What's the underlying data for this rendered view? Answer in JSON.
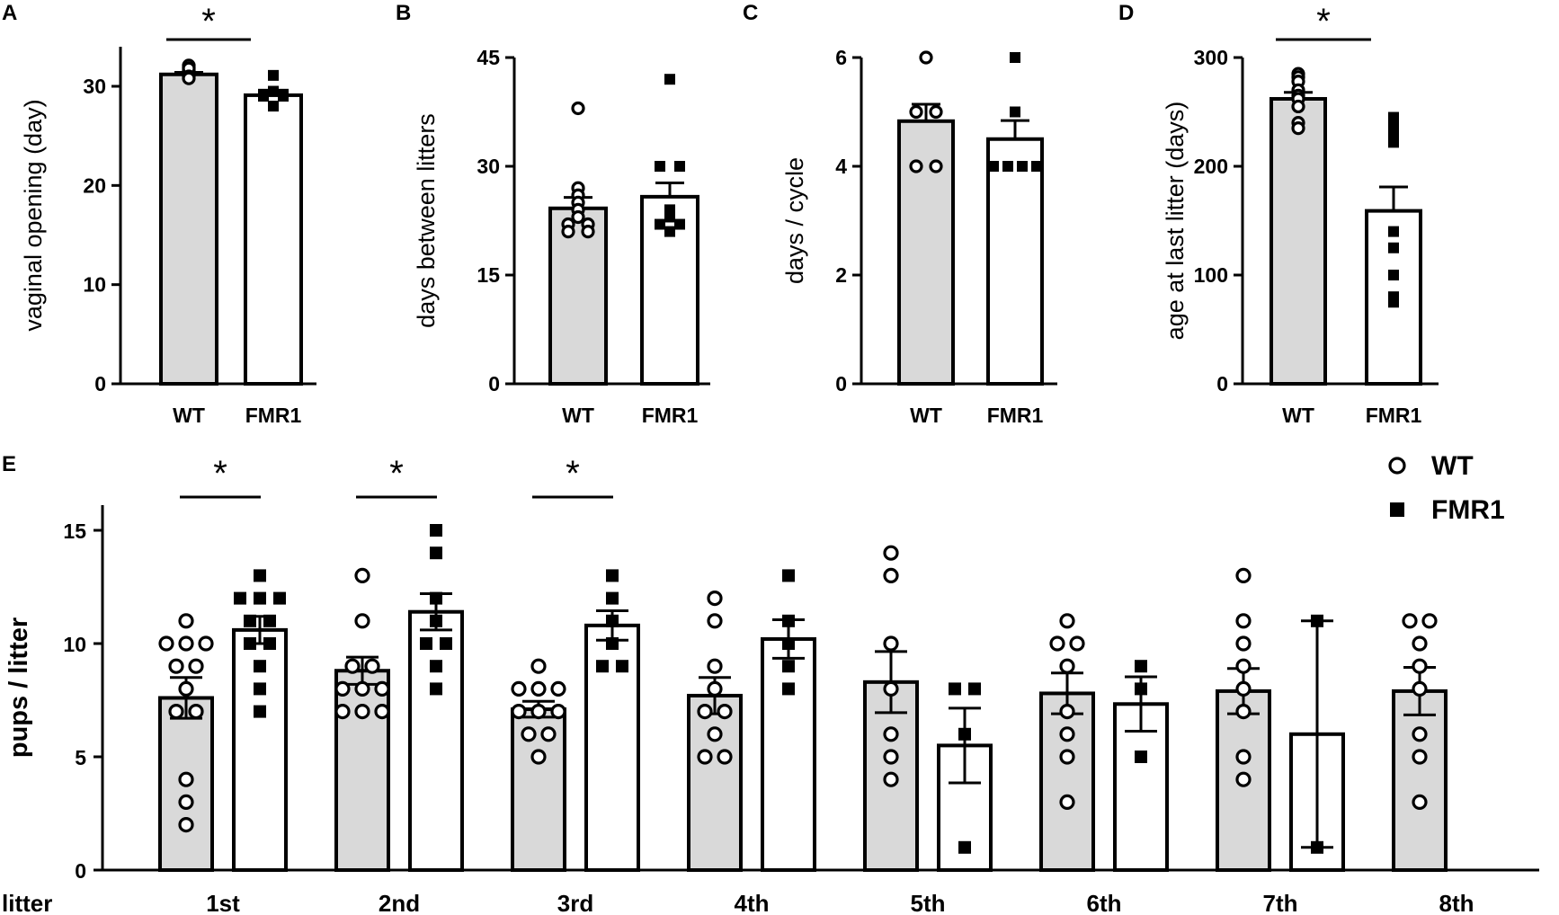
{
  "colors": {
    "wt_fill": "#d9d9d9",
    "fmr1_fill": "#ffffff",
    "stroke": "#000000"
  },
  "chart_data": [
    {
      "panel": "A",
      "type": "bar",
      "ylabel": "vaginal opening (day)",
      "ylim": [
        0,
        33
      ],
      "yticks": [
        0,
        10,
        20,
        30
      ],
      "categories": [
        "WT",
        "FMR1"
      ],
      "series": [
        {
          "name": "WT",
          "mean": 31.2,
          "sem": 0.2,
          "points": [
            31.9,
            32.1,
            31.6,
            31.8,
            31.0,
            30.8
          ]
        },
        {
          "name": "FMR1",
          "mean": 29.1,
          "sem": 0.15,
          "points": [
            31.1,
            29.5,
            29.2,
            29.0,
            29.2,
            29.0,
            28.0
          ]
        }
      ],
      "significance": [
        {
          "label": "*",
          "from": "WT",
          "to": "FMR1"
        }
      ]
    },
    {
      "panel": "B",
      "type": "bar",
      "ylabel": "days between litters",
      "ylim": [
        0,
        45
      ],
      "yticks": [
        0,
        15,
        30,
        45
      ],
      "categories": [
        "WT",
        "FMR1"
      ],
      "series": [
        {
          "name": "WT",
          "mean": 24.2,
          "sem": 1.5,
          "points": [
            38,
            27,
            26,
            25,
            24,
            23,
            22,
            21,
            22,
            21
          ]
        },
        {
          "name": "FMR1",
          "mean": 25.8,
          "sem": 1.9,
          "points": [
            42,
            30,
            30,
            24,
            23,
            22,
            22,
            21
          ]
        }
      ],
      "significance": []
    },
    {
      "panel": "C",
      "type": "bar",
      "ylabel": "days / cycle",
      "ylim": [
        0,
        6
      ],
      "yticks": [
        0,
        2,
        4,
        6
      ],
      "categories": [
        "WT",
        "FMR1"
      ],
      "series": [
        {
          "name": "WT",
          "mean": 4.83,
          "sem": 0.31,
          "points": [
            6,
            5,
            5,
            4,
            4
          ]
        },
        {
          "name": "FMR1",
          "mean": 4.5,
          "sem": 0.34,
          "points": [
            6,
            5,
            4,
            4,
            4,
            4
          ]
        }
      ],
      "significance": []
    },
    {
      "panel": "D",
      "type": "bar",
      "ylabel": "age at last litter (days)",
      "ylim": [
        0,
        300
      ],
      "yticks": [
        0,
        100,
        200,
        300
      ],
      "categories": [
        "WT",
        "FMR1"
      ],
      "series": [
        {
          "name": "WT",
          "mean": 262,
          "sem": 6,
          "points": [
            285,
            282,
            278,
            270,
            265,
            262,
            255,
            240,
            235
          ]
        },
        {
          "name": "FMR1",
          "mean": 159,
          "sem": 22,
          "points": [
            245,
            238,
            230,
            222,
            140,
            125,
            100,
            80,
            75
          ]
        }
      ],
      "significance": [
        {
          "label": "*",
          "from": "WT",
          "to": "FMR1"
        }
      ]
    },
    {
      "panel": "E",
      "type": "bar",
      "ylabel": "pups / litter",
      "xlabel": "litter",
      "ylim": [
        0,
        16
      ],
      "yticks": [
        0,
        5,
        10,
        15
      ],
      "categories": [
        "1st",
        "2nd",
        "3rd",
        "4th",
        "5th",
        "6th",
        "7th",
        "8th"
      ],
      "legend": {
        "position": "top-right",
        "entries": [
          "WT",
          "FMR1"
        ]
      },
      "groups": [
        {
          "category": "1st",
          "WT": {
            "mean": 7.6,
            "sem": 0.9,
            "points": [
              11,
              10,
              10,
              10,
              9,
              9,
              8,
              7,
              7,
              4,
              3,
              2
            ]
          },
          "FMR1": {
            "mean": 10.6,
            "sem": 0.6,
            "points": [
              13,
              12,
              12,
              12,
              11,
              11,
              10,
              10,
              9,
              8,
              7
            ]
          }
        },
        {
          "category": "2nd",
          "WT": {
            "mean": 8.8,
            "sem": 0.6,
            "points": [
              13,
              11,
              9,
              9,
              8,
              8,
              8,
              7,
              7,
              7
            ]
          },
          "FMR1": {
            "mean": 11.4,
            "sem": 0.8,
            "points": [
              15,
              14,
              12,
              11,
              10,
              10,
              9,
              8
            ]
          }
        },
        {
          "category": "3rd",
          "WT": {
            "mean": 7.1,
            "sem": 0.35,
            "points": [
              9,
              8,
              8,
              8,
              7,
              7,
              7,
              6,
              6,
              5
            ]
          },
          "FMR1": {
            "mean": 10.8,
            "sem": 0.65,
            "points": [
              13,
              12,
              11,
              10,
              9,
              9
            ]
          }
        },
        {
          "category": "4th",
          "WT": {
            "mean": 7.7,
            "sem": 0.8,
            "points": [
              12,
              11,
              9,
              8,
              7,
              7,
              6,
              5,
              5
            ]
          },
          "FMR1": {
            "mean": 10.2,
            "sem": 0.85,
            "points": [
              13,
              11,
              10,
              9,
              8
            ]
          }
        },
        {
          "category": "5th",
          "WT": {
            "mean": 8.3,
            "sem": 1.35,
            "points": [
              14,
              13,
              10,
              8,
              6,
              5,
              4
            ]
          },
          "FMR1": {
            "mean": 5.5,
            "sem": 1.65,
            "points": [
              8,
              8,
              6,
              1
            ]
          }
        },
        {
          "category": "6th",
          "WT": {
            "mean": 7.8,
            "sem": 0.9,
            "points": [
              11,
              10,
              10,
              9,
              7,
              6,
              5,
              3
            ]
          },
          "FMR1": {
            "mean": 7.33,
            "sem": 1.2,
            "points": [
              9,
              8,
              5
            ]
          }
        },
        {
          "category": "7th",
          "WT": {
            "mean": 7.9,
            "sem": 1.0,
            "points": [
              13,
              11,
              10,
              9,
              8,
              7,
              5,
              4
            ]
          },
          "FMR1": {
            "mean": 6.0,
            "sem": 5.0,
            "points": [
              11,
              1
            ]
          }
        },
        {
          "category": "8th",
          "WT": {
            "mean": 7.9,
            "sem": 1.05,
            "points": [
              11,
              11,
              10,
              9,
              8,
              6,
              5,
              3
            ]
          },
          "FMR1": null
        }
      ],
      "significance": [
        {
          "label": "*",
          "category": "1st"
        },
        {
          "label": "*",
          "category": "2nd"
        },
        {
          "label": "*",
          "category": "3rd"
        }
      ]
    }
  ]
}
